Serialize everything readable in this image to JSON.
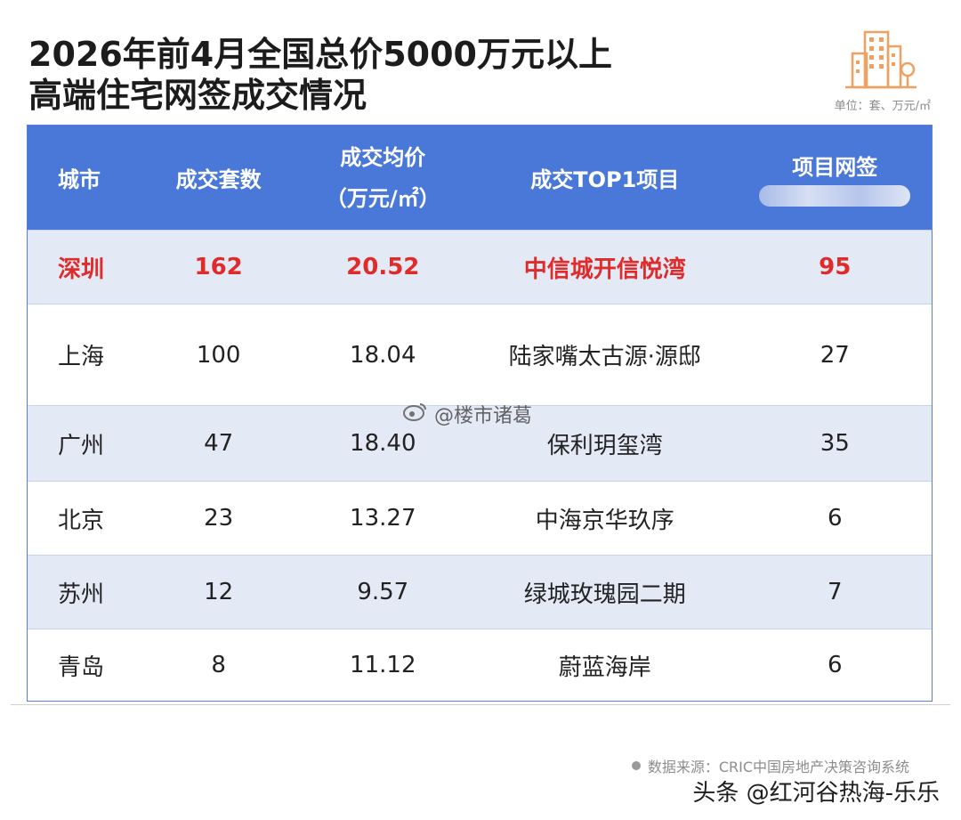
{
  "title": {
    "line1": "2026年前4月全国总价5000万元以上",
    "line2": "高端住宅网签成交情况"
  },
  "unit_note": "单位：套、万元/㎡",
  "table": {
    "headers": {
      "city": "城市",
      "count": "成交套数",
      "avg_price_line1": "成交均价",
      "avg_price_line2": "（万元/㎡）",
      "top_project": "成交TOP1项目",
      "project_signed": "项目网签"
    },
    "rows": [
      {
        "city": "深圳",
        "count": "162",
        "avg_price": "20.52",
        "top_project": "中信城开信悦湾",
        "signed": "95"
      },
      {
        "city": "上海",
        "count": "100",
        "avg_price": "18.04",
        "top_project": "陆家嘴太古源·源邸",
        "signed": "27"
      },
      {
        "city": "广州",
        "count": "47",
        "avg_price": "18.40",
        "top_project": "保利玥玺湾",
        "signed": "35"
      },
      {
        "city": "北京",
        "count": "23",
        "avg_price": "13.27",
        "top_project": "中海京华玖序",
        "signed": "6"
      },
      {
        "city": "苏州",
        "count": "12",
        "avg_price": "9.57",
        "top_project": "绿城玫瑰园二期",
        "signed": "7"
      },
      {
        "city": "青岛",
        "count": "8",
        "avg_price": "11.12",
        "top_project": "蔚蓝海岸",
        "signed": "6"
      }
    ]
  },
  "source": "数据来源：CRIC中国房地产决策咨询系统",
  "weibo_watermark": "@楼市诸葛",
  "toutiao_watermark": "头条 @红河谷热海-乐乐",
  "colors": {
    "header_blue": "#4a78d8",
    "row_alt": "#e4e9f6",
    "highlight_red": "#e02b2b",
    "logo_orange": "#f0a060"
  },
  "icons": [
    "buildings-icon",
    "weibo-icon"
  ]
}
